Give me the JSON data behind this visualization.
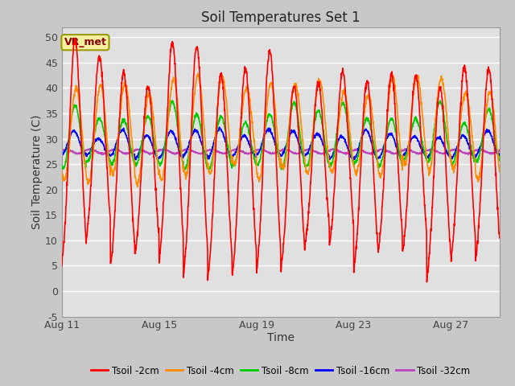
{
  "title": "Soil Temperatures Set 1",
  "xlabel": "Time",
  "ylabel": "Soil Temperature (C)",
  "ylim": [
    -5,
    52
  ],
  "yticks": [
    -5,
    0,
    5,
    10,
    15,
    20,
    25,
    30,
    35,
    40,
    45,
    50
  ],
  "annotation": "VR_met",
  "fig_facecolor": "#c8c8c8",
  "ax_facecolor": "#e0e0e0",
  "series_colors": [
    "#ff0000",
    "#ff8c00",
    "#00cc00",
    "#0000ff",
    "#bb44bb"
  ],
  "series_labels": [
    "Tsoil -2cm",
    "Tsoil -4cm",
    "Tsoil -8cm",
    "Tsoil -16cm",
    "Tsoil -32cm"
  ],
  "xtick_positions": [
    0,
    4,
    8,
    12,
    16
  ],
  "xtick_labels": [
    "Aug 11",
    "Aug 15",
    "Aug 19",
    "Aug 23",
    "Aug 27"
  ],
  "n_days": 18,
  "n_points_per_day": 96,
  "seed": 12345
}
